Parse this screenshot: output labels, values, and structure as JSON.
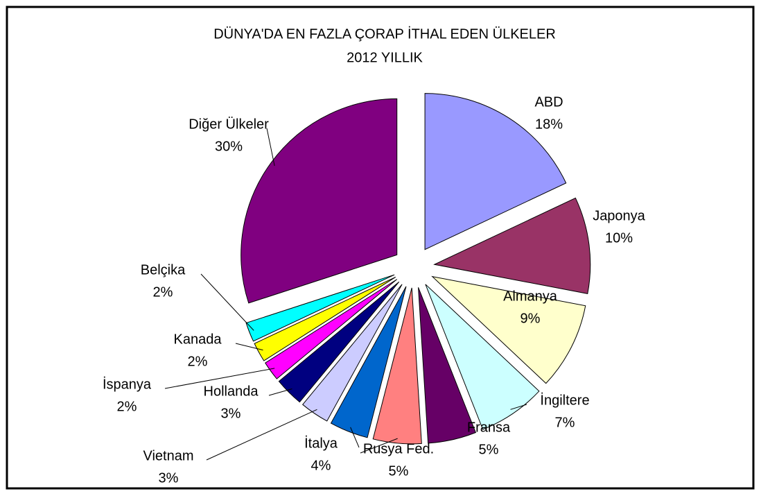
{
  "chart_data": {
    "type": "pie",
    "title": "DÜNYA'DA EN FAZLA ÇORAP İTHAL EDEN ÜLKELER",
    "subtitle": "2012 YILLIK",
    "categories": [
      "ABD",
      "Japonya",
      "Almanya",
      "İngiltere",
      "Fransa",
      "Rusya Fed.",
      "İtalya",
      "Vietnam",
      "Hollanda",
      "İspanya",
      "Kanada",
      "Belçika",
      "Diğer Ülkeler"
    ],
    "values": [
      18,
      10,
      9,
      7,
      5,
      5,
      4,
      3,
      3,
      2,
      2,
      2,
      30
    ],
    "value_labels": [
      "18%",
      "10%",
      "9%",
      "7%",
      "5%",
      "5%",
      "4%",
      "3%",
      "3%",
      "2%",
      "2%",
      "2%",
      "30%"
    ],
    "colors": [
      "#9999ff",
      "#993366",
      "#ffffcc",
      "#ccffff",
      "#660066",
      "#ff8080",
      "#0066cc",
      "#ccccff",
      "#000080",
      "#ff00ff",
      "#ffff00",
      "#00ffff",
      "#800080"
    ]
  }
}
